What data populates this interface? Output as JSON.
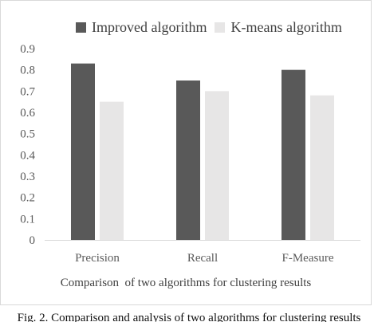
{
  "chart_data": {
    "type": "bar",
    "categories": [
      "Precision",
      "Recall",
      "F-Measure"
    ],
    "series": [
      {
        "name": "Improved algorithm",
        "values": [
          0.83,
          0.75,
          0.8
        ],
        "color": "#595959"
      },
      {
        "name": "K-means algorithm",
        "values": [
          0.65,
          0.7,
          0.68
        ],
        "color": "#e7e6e6"
      }
    ],
    "title": "",
    "xlabel": "Comparison  of two algorithms for clustering results",
    "ylabel": "",
    "ylim": [
      0,
      0.9
    ],
    "yticks": [
      "0",
      "0.1",
      "0.2",
      "0.3",
      "0.4",
      "0.5",
      "0.6",
      "0.7",
      "0.8",
      "0.9"
    ],
    "ytick_values": [
      0,
      0.1,
      0.2,
      0.3,
      0.4,
      0.5,
      0.6,
      0.7,
      0.8,
      0.9
    ],
    "grid": false,
    "legend_position": "top"
  },
  "caption": "Fig. 2. Comparison and analysis of two algorithms for clustering results"
}
